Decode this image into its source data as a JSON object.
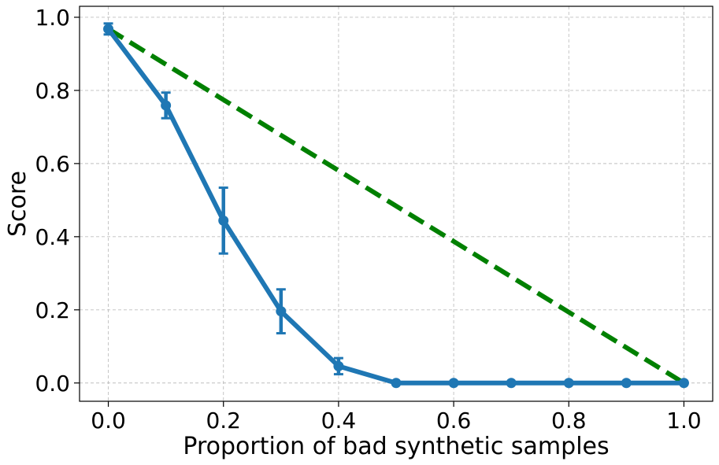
{
  "chart_data": {
    "type": "line",
    "title": "",
    "xlabel": "Proportion of bad synthetic samples",
    "ylabel": "Score",
    "xlim": [
      -0.05,
      1.05
    ],
    "ylim": [
      -0.05,
      1.03
    ],
    "xticks": [
      0.0,
      0.2,
      0.4,
      0.6,
      0.8,
      1.0
    ],
    "xtick_labels": [
      "0.0",
      "0.2",
      "0.4",
      "0.6",
      "0.8",
      "1.0"
    ],
    "yticks": [
      0.0,
      0.2,
      0.4,
      0.6,
      0.8,
      1.0
    ],
    "ytick_labels": [
      "0.0",
      "0.2",
      "0.4",
      "0.6",
      "0.8",
      "1.0"
    ],
    "grid": true,
    "series": [
      {
        "style": "solid-with-markers-and-errorbars",
        "color": "#1f77b4",
        "x": [
          0.0,
          0.1,
          0.2,
          0.3,
          0.4,
          0.5,
          0.6,
          0.7,
          0.8,
          0.9,
          1.0
        ],
        "y": [
          0.968,
          0.759,
          0.444,
          0.196,
          0.046,
          0.0,
          0.0,
          0.0,
          0.0,
          0.0,
          0.0
        ],
        "yerr": [
          0.015,
          0.035,
          0.09,
          0.06,
          0.022,
          0,
          0,
          0,
          0,
          0,
          0
        ]
      },
      {
        "style": "dashed",
        "color": "#008000",
        "x": [
          0.0,
          1.0
        ],
        "y": [
          0.968,
          0.0
        ]
      }
    ]
  }
}
